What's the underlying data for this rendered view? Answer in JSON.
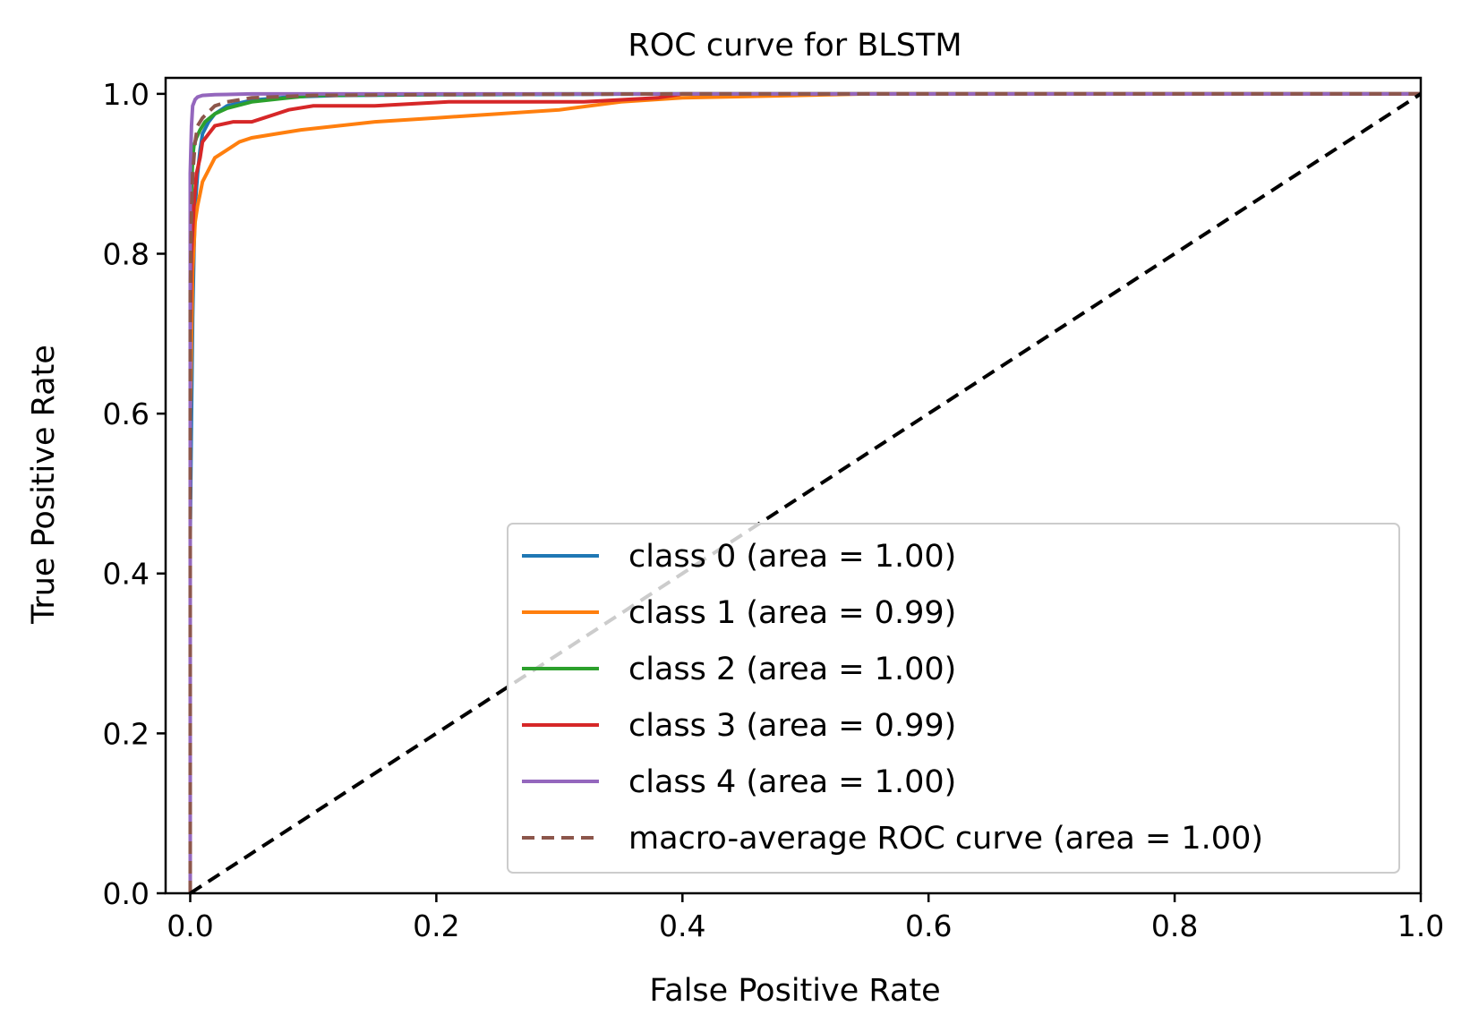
{
  "chart_data": {
    "type": "line",
    "title": "ROC curve for BLSTM",
    "xlabel": "False Positive Rate",
    "ylabel": "True Positive Rate",
    "xlim": [
      -0.02,
      1.0
    ],
    "ylim": [
      0.0,
      1.02
    ],
    "xticks": [
      0.0,
      0.2,
      0.4,
      0.6,
      0.8,
      1.0
    ],
    "xtick_labels": [
      "0.0",
      "0.2",
      "0.4",
      "0.6",
      "0.8",
      "1.0"
    ],
    "yticks": [
      0.0,
      0.2,
      0.4,
      0.6,
      0.8,
      1.0
    ],
    "ytick_labels": [
      "0.0",
      "0.2",
      "0.4",
      "0.6",
      "0.8",
      "1.0"
    ],
    "grid": false,
    "legend_position": "lower-right",
    "series": [
      {
        "name": "class 0 (area = 1.00)",
        "color": "#1f77b4",
        "dash": "solid",
        "x": [
          0,
          0,
          0.001,
          0.002,
          0.003,
          0.004,
          0.006,
          0.008,
          0.01,
          0.015,
          0.02,
          0.03,
          0.05,
          0.08,
          0.12,
          0.2,
          0.4,
          1.0
        ],
        "y": [
          0,
          0.45,
          0.6,
          0.72,
          0.8,
          0.86,
          0.9,
          0.93,
          0.95,
          0.965,
          0.975,
          0.985,
          0.992,
          0.996,
          0.998,
          0.999,
          1.0,
          1.0
        ]
      },
      {
        "name": "class 1 (area = 0.99)",
        "color": "#ff7f0e",
        "dash": "solid",
        "x": [
          0,
          0,
          0.002,
          0.004,
          0.006,
          0.008,
          0.01,
          0.015,
          0.02,
          0.03,
          0.04,
          0.05,
          0.07,
          0.09,
          0.12,
          0.15,
          0.2,
          0.25,
          0.3,
          0.35,
          0.4,
          0.55,
          1.0
        ],
        "y": [
          0,
          0.6,
          0.78,
          0.84,
          0.86,
          0.875,
          0.89,
          0.905,
          0.92,
          0.93,
          0.94,
          0.945,
          0.95,
          0.955,
          0.96,
          0.965,
          0.97,
          0.975,
          0.98,
          0.99,
          0.995,
          1.0,
          1.0
        ]
      },
      {
        "name": "class 2 (area = 1.00)",
        "color": "#2ca02c",
        "dash": "solid",
        "x": [
          0,
          0,
          0.001,
          0.002,
          0.003,
          0.005,
          0.008,
          0.012,
          0.02,
          0.03,
          0.05,
          0.08,
          0.1,
          0.15,
          0.3,
          1.0
        ],
        "y": [
          0,
          0.8,
          0.88,
          0.92,
          0.935,
          0.945,
          0.955,
          0.965,
          0.975,
          0.982,
          0.99,
          0.995,
          0.998,
          0.999,
          1.0,
          1.0
        ]
      },
      {
        "name": "class 3 (area = 0.99)",
        "color": "#d62728",
        "dash": "solid",
        "x": [
          0,
          0,
          0.001,
          0.003,
          0.005,
          0.008,
          0.01,
          0.015,
          0.02,
          0.035,
          0.05,
          0.06,
          0.08,
          0.1,
          0.15,
          0.21,
          0.32,
          0.38,
          0.4,
          1.0
        ],
        "y": [
          0,
          0.7,
          0.8,
          0.86,
          0.9,
          0.92,
          0.94,
          0.95,
          0.96,
          0.965,
          0.965,
          0.97,
          0.98,
          0.985,
          0.985,
          0.99,
          0.99,
          0.995,
          1.0,
          1.0
        ]
      },
      {
        "name": "class 4 (area = 1.00)",
        "color": "#9467bd",
        "dash": "solid",
        "x": [
          0,
          0,
          0.001,
          0.002,
          0.004,
          0.006,
          0.01,
          0.02,
          0.05,
          0.1,
          1.0
        ],
        "y": [
          0,
          0.9,
          0.96,
          0.985,
          0.993,
          0.996,
          0.998,
          0.999,
          1.0,
          1.0,
          1.0
        ]
      },
      {
        "name": "macro-average ROC curve (area = 1.00)",
        "color": "#8c564b",
        "dash": "dashed",
        "x": [
          0,
          0,
          0.001,
          0.002,
          0.004,
          0.006,
          0.01,
          0.02,
          0.03,
          0.05,
          0.1,
          0.2,
          0.4,
          1.0
        ],
        "y": [
          0,
          0.75,
          0.85,
          0.9,
          0.94,
          0.96,
          0.97,
          0.985,
          0.99,
          0.995,
          0.998,
          0.999,
          1.0,
          1.0
        ]
      }
    ],
    "reference_line": {
      "x": [
        0,
        1
      ],
      "y": [
        0,
        1
      ],
      "color": "#000000",
      "dash": "dashed"
    }
  }
}
